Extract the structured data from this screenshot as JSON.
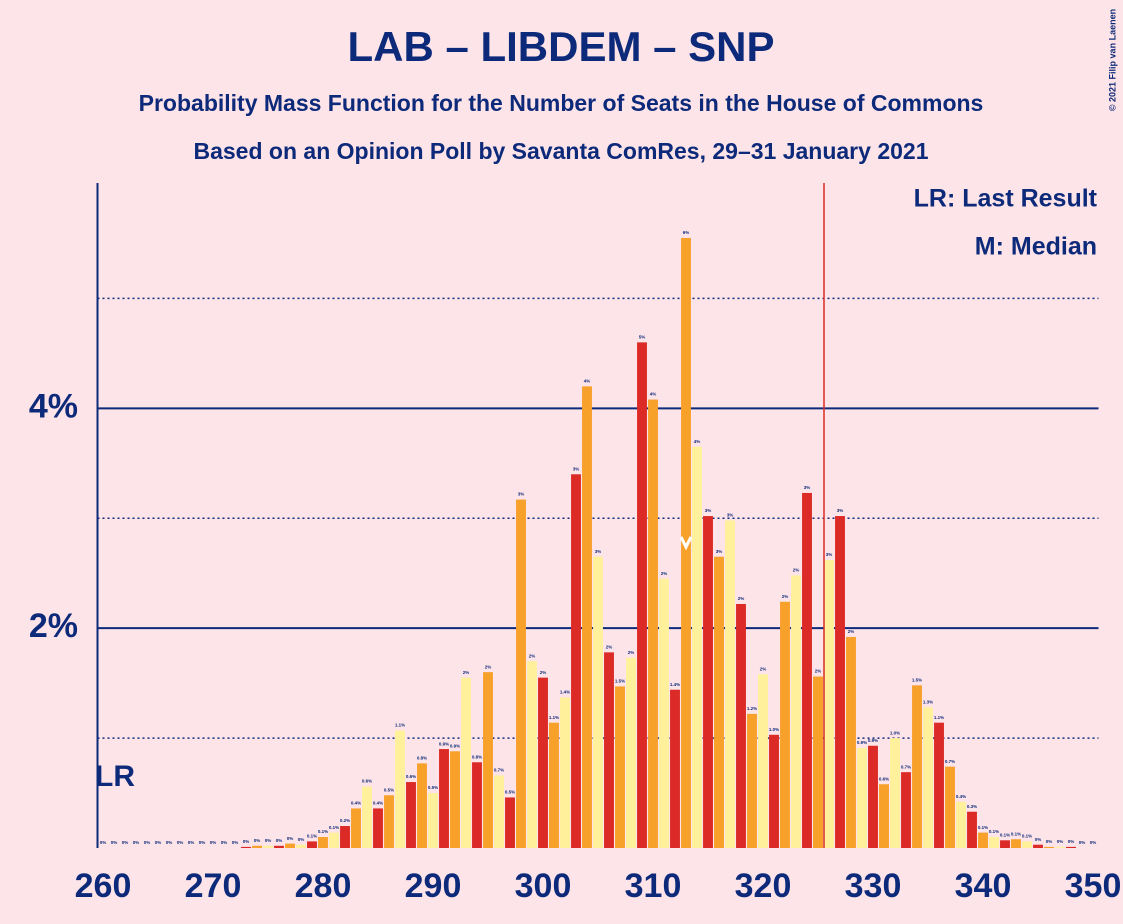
{
  "chart_data": {
    "type": "bar",
    "title": "LAB – LIBDEM – SNP",
    "subtitle": "Probability Mass Function for the Number of Seats in the House of Commons",
    "subtitle2": "Based on an Opinion Poll by Savanta ComRes, 29–31 January 2021",
    "copyright": "© 2021 Filip van Laenen",
    "legend_lr": "LR: Last Result",
    "legend_median": "M: Median",
    "last_result_label": "LR",
    "last_result": 326,
    "median": 313,
    "colors": [
      "#fff09c",
      "#dc2b26",
      "#f7a12b"
    ],
    "x": [
      260,
      261,
      262,
      263,
      264,
      265,
      266,
      267,
      268,
      269,
      270,
      271,
      272,
      273,
      274,
      275,
      276,
      277,
      278,
      279,
      280,
      281,
      282,
      283,
      284,
      285,
      286,
      287,
      288,
      289,
      290,
      291,
      292,
      293,
      294,
      295,
      296,
      297,
      298,
      299,
      300,
      301,
      302,
      303,
      304,
      305,
      306,
      307,
      308,
      309,
      310,
      311,
      312,
      313,
      314,
      315,
      316,
      317,
      318,
      319,
      320,
      321,
      322,
      323,
      324,
      325,
      326,
      327,
      328,
      329,
      330,
      331,
      332,
      333,
      334,
      335,
      336,
      337,
      338,
      339,
      340,
      341,
      342,
      343,
      344,
      345,
      346,
      347,
      348,
      349,
      350
    ],
    "values": [
      0,
      0,
      0,
      0,
      0,
      0,
      0,
      0,
      0,
      0,
      0,
      0,
      0,
      0.01,
      0.02,
      0.02,
      0.02,
      0.04,
      0.03,
      0.06,
      0.1,
      0.14,
      0.2,
      0.36,
      0.56,
      0.36,
      0.48,
      1.07,
      0.6,
      0.77,
      0.5,
      0.9,
      0.88,
      1.55,
      0.78,
      1.6,
      0.66,
      0.46,
      3.17,
      1.7,
      1.55,
      1.14,
      1.37,
      3.4,
      4.2,
      2.65,
      1.78,
      1.47,
      1.73,
      4.6,
      4.08,
      2.45,
      1.44,
      5.55,
      3.65,
      3.02,
      2.65,
      2.98,
      2.22,
      1.22,
      1.58,
      1.03,
      2.24,
      2.48,
      3.23,
      1.56,
      2.62,
      3.02,
      1.92,
      0.91,
      0.93,
      0.58,
      1.0,
      0.69,
      1.48,
      1.28,
      1.14,
      0.74,
      0.42,
      0.33,
      0.14,
      0.1,
      0.07,
      0.08,
      0.06,
      0.03,
      0.01,
      0.01,
      0.01,
      0,
      0
    ],
    "value_labels": [
      "0%",
      "0%",
      "0%",
      "0%",
      "0%",
      "0%",
      "0%",
      "0%",
      "0%",
      "0%",
      "0%",
      "0%",
      "0%",
      "0%",
      "0%",
      "0%",
      "0%",
      "0%",
      "0%",
      "0.1%",
      "0.1%",
      "0.1%",
      "0.2%",
      "0.4%",
      "0.6%",
      "0.4%",
      "0.5%",
      "1.1%",
      "0.6%",
      "0.8%",
      "0.5%",
      "0.9%",
      "0.9%",
      "2%",
      "0.8%",
      "2%",
      "0.7%",
      "0.5%",
      "3%",
      "2%",
      "2%",
      "1.1%",
      "1.4%",
      "3%",
      "4%",
      "3%",
      "2%",
      "1.5%",
      "2%",
      "5%",
      "4%",
      "2%",
      "1.4%",
      "6%",
      "4%",
      "3%",
      "3%",
      "3%",
      "2%",
      "1.2%",
      "2%",
      "1.0%",
      "2%",
      "2%",
      "3%",
      "2%",
      "3%",
      "3%",
      "2%",
      "0.9%",
      "0.9%",
      "0.6%",
      "1.0%",
      "0.7%",
      "1.5%",
      "1.3%",
      "1.1%",
      "0.7%",
      "0.4%",
      "0.3%",
      "0.1%",
      "0.1%",
      "0.1%",
      "0.1%",
      "0.1%",
      "0%",
      "0%",
      "0%",
      "0%",
      "0%",
      "0%"
    ],
    "xlim": [
      259.5,
      350.5
    ],
    "xticks": [
      260,
      270,
      280,
      290,
      300,
      310,
      320,
      330,
      340,
      350
    ],
    "ylim": [
      0,
      6.05
    ],
    "yticks": [
      {
        "value": 2,
        "label": "2%"
      },
      {
        "value": 4,
        "label": "4%"
      }
    ],
    "minor_yticks": [
      1,
      3,
      5
    ],
    "grid": true
  }
}
